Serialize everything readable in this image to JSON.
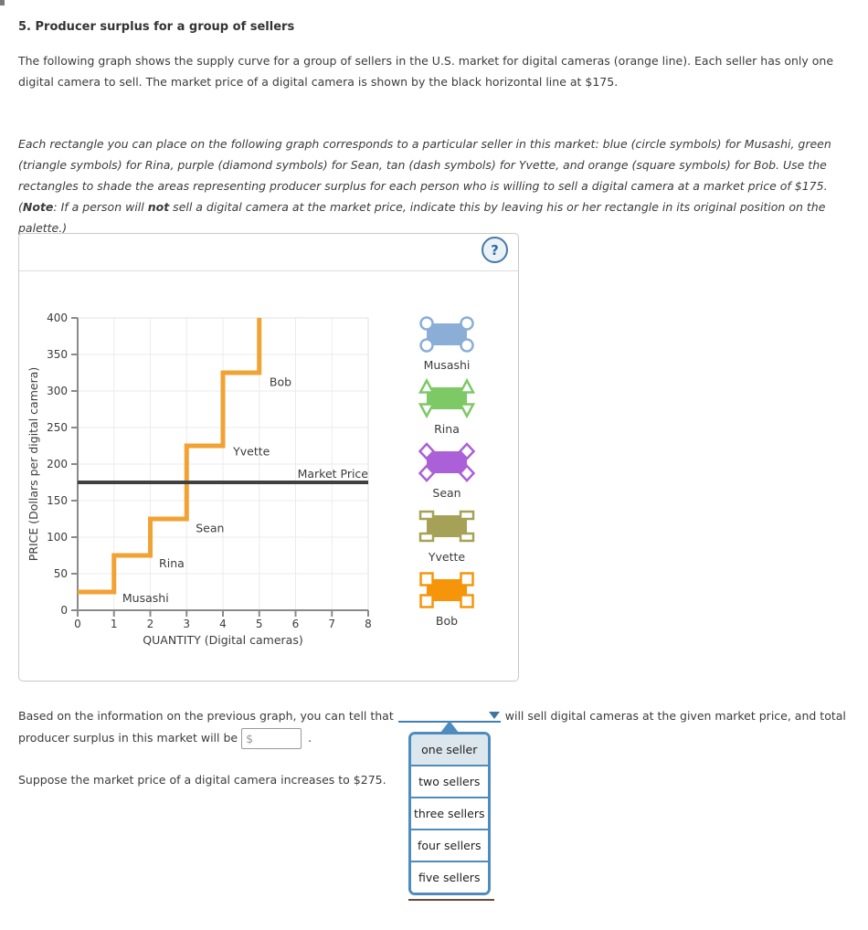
{
  "title": "5. Producer surplus for a group of sellers",
  "intro": "The following graph shows the supply curve for a group of sellers in the U.S. market for digital cameras (orange line). Each seller has only one digital camera to sell. The market price of a digital camera is shown by the black horizontal line at $175.",
  "instructions": {
    "part1": "Each rectangle you can place on the following graph corresponds to a particular seller in this market: blue (circle symbols) for Musashi, green (triangle symbols) for Rina, purple (diamond symbols) for Sean, tan (dash symbols) for Yvette, and orange (square symbols) for Bob. Use the rectangles to shade the areas representing producer surplus for each person who is willing to sell a digital camera at a market price of $175. (",
    "note_label": "Note",
    "part2": ": If a person will ",
    "emphasis": "not",
    "part3": " sell a digital camera at the market price, indicate this by leaving his or her rectangle in its original position on the palette.)"
  },
  "graph_panel": {
    "help_icon": "?"
  },
  "chart_data": {
    "type": "line",
    "title": "",
    "xlabel": "QUANTITY (Digital cameras)",
    "ylabel": "PRICE (Dollars per digital camera)",
    "xlim": [
      0,
      8
    ],
    "ylim": [
      0,
      400
    ],
    "xticks": [
      0,
      1,
      2,
      3,
      4,
      5,
      6,
      7,
      8
    ],
    "yticks": [
      0,
      50,
      100,
      150,
      200,
      250,
      300,
      350,
      400
    ],
    "grid": true,
    "supply_curve": {
      "color": "#F2A233",
      "points": [
        [
          0,
          25
        ],
        [
          1,
          25
        ],
        [
          1,
          75
        ],
        [
          2,
          75
        ],
        [
          2,
          125
        ],
        [
          3,
          125
        ],
        [
          3,
          225
        ],
        [
          4,
          225
        ],
        [
          4,
          325
        ],
        [
          5,
          325
        ],
        [
          5,
          400
        ]
      ]
    },
    "market_price": {
      "value": 175,
      "color": "#404040",
      "label": "Market Price"
    },
    "sellers": [
      {
        "name": "Musashi",
        "reservation_price": 25,
        "quantity_range": [
          0,
          1
        ]
      },
      {
        "name": "Rina",
        "reservation_price": 75,
        "quantity_range": [
          1,
          2
        ]
      },
      {
        "name": "Sean",
        "reservation_price": 125,
        "quantity_range": [
          2,
          3
        ]
      },
      {
        "name": "Yvette",
        "reservation_price": 225,
        "quantity_range": [
          3,
          4
        ]
      },
      {
        "name": "Bob",
        "reservation_price": 325,
        "quantity_range": [
          4,
          5
        ]
      }
    ],
    "point_labels": [
      {
        "text": "Musashi",
        "x": 1.23,
        "y": 11
      },
      {
        "text": "Rina",
        "x": 2.24,
        "y": 59
      },
      {
        "text": "Sean",
        "x": 3.25,
        "y": 107
      },
      {
        "text": "Yvette",
        "x": 4.28,
        "y": 212
      },
      {
        "text": "Bob",
        "x": 5.28,
        "y": 307
      },
      {
        "text": "Market Price",
        "x": 8,
        "y": 181,
        "anchor": "end"
      }
    ]
  },
  "palette": {
    "items": [
      {
        "label": "Musashi",
        "color": "#8AAED6",
        "handle": "circle"
      },
      {
        "label": "Rina",
        "color": "#7CC965",
        "handle": "triangle"
      },
      {
        "label": "Sean",
        "color": "#AB60D8",
        "handle": "diamond"
      },
      {
        "label": "Yvette",
        "color": "#A5A257",
        "handle": "dash"
      },
      {
        "label": "Bob",
        "color": "#F6950A",
        "handle": "square"
      }
    ]
  },
  "question": {
    "line1_before": "Based on the information on the previous graph, you can tell that",
    "line1_after": "will sell digital cameras at the given market price, and total",
    "line2_before": "producer surplus in this market will be",
    "currency_symbol": "$",
    "input_value": "",
    "line2_after": ".",
    "followup": "Suppose the market price of a digital camera increases to $275."
  },
  "dropdown": {
    "options": [
      "one seller",
      "two sellers",
      "three sellers",
      "four sellers",
      "five sellers"
    ],
    "selected_index": 0
  }
}
